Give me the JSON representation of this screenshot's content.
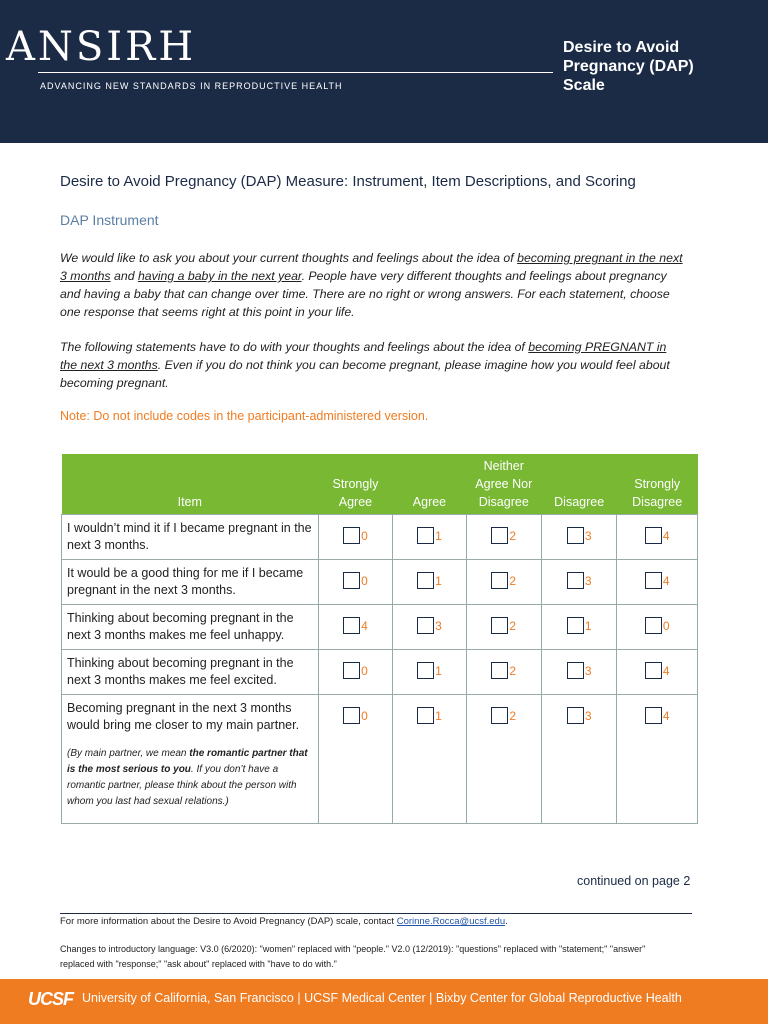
{
  "header": {
    "logo": "ANSIRH",
    "tagline": "ADVANCING NEW STANDARDS IN REPRODUCTIVE HEALTH",
    "title": "Desire to Avoid Pregnancy (DAP) Scale"
  },
  "document": {
    "title": "Desire to Avoid Pregnancy (DAP) Measure: Instrument, Item Descriptions, and Scoring",
    "section": "DAP Instrument",
    "paragraph1": [
      "We would like to ask you about your current thoughts and feelings about the idea of ",
      "becoming pregnant in the next 3 months",
      " and ",
      "having a baby in the next year",
      ". People have very different thoughts and feelings about pregnancy and having a baby that can change over time.  There are no right or wrong answers.  For each statement, choose one response that seems right at this point in your life."
    ],
    "paragraph2": [
      "The following statements have to do with your thoughts and feelings about the idea of ",
      "becoming PREGNANT in the next 3 months",
      ". Even if you do not think you can become pregnant, please imagine how you would feel about becoming pregnant."
    ],
    "note": "Note: Do not include codes in the participant-administered version."
  },
  "table": {
    "columns": [
      "Item",
      "Strongly Agree",
      "Agree",
      "Neither Agree Nor Disagree",
      "Disagree",
      "Strongly Disagree"
    ],
    "rows": [
      {
        "item": "I wouldn’t mind it if I became pregnant in the next 3 months.",
        "codes": [
          0,
          1,
          2,
          3,
          4
        ]
      },
      {
        "item": "It would be a good thing for me if I became pregnant in the next 3 months.",
        "codes": [
          0,
          1,
          2,
          3,
          4
        ]
      },
      {
        "item": "Thinking about becoming pregnant in the next 3 months makes me feel unhappy.",
        "codes": [
          4,
          3,
          2,
          1,
          0
        ]
      },
      {
        "item": "Thinking about becoming pregnant in the next 3 months makes me feel excited.",
        "codes": [
          0,
          1,
          2,
          3,
          4
        ]
      },
      {
        "item": "Becoming pregnant in the next 3 months would bring me closer to my main partner.",
        "codes": [
          0,
          1,
          2,
          3,
          4
        ],
        "note": [
          "(By main partner, we mean ",
          "the romantic partner that is the most serious to you",
          ". If you don’t have a romantic partner, please think about the person with whom you last had sexual relations.)"
        ]
      }
    ]
  },
  "footer": {
    "continued": "continued on page 2",
    "info": "For more information about the Desire to Avoid Pregnancy (DAP) scale, contact ",
    "email": "Corinne.Rocca@ucsf.edu",
    "info_end": ".",
    "changes": "Changes to introductory language: V3.0 (6/2020): \"women\" replaced with \"people.\" V2.0 (12/2019): \"questions\" replaced with \"statement;\" \"answer\" replaced with \"response;\" \"ask about\" replaced with \"have to do with.\"",
    "logo": "UCSF",
    "affiliations": [
      "University of California, San Francisco",
      "UCSF Medical Center",
      "Bixby Center for Global Reproductive Health"
    ]
  }
}
